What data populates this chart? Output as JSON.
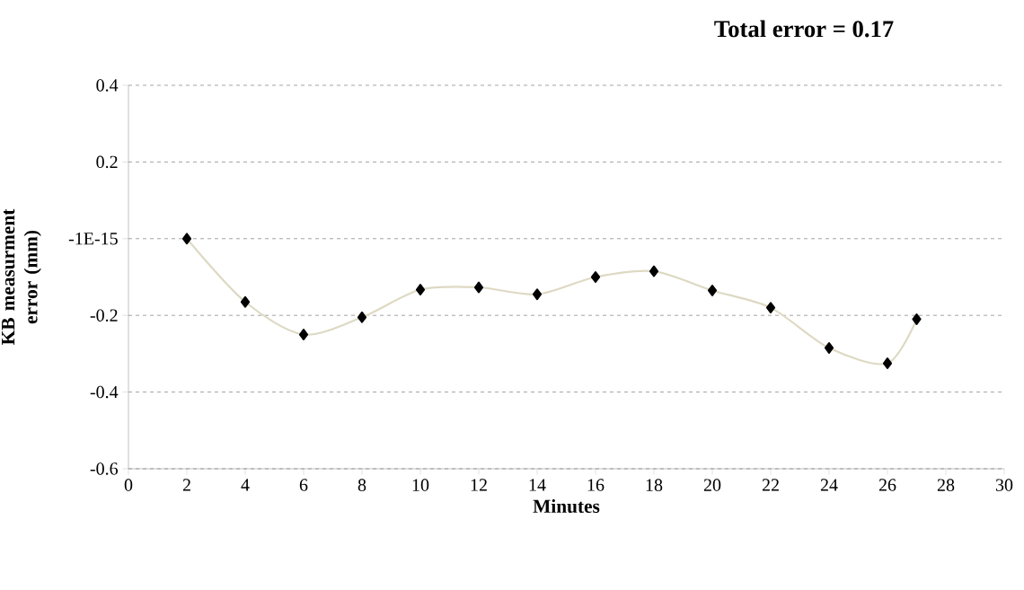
{
  "chart_data": {
    "type": "line",
    "title": "Total error = 0.17",
    "xlabel": "Minutes",
    "ylabel": "KB measurment error (mm)",
    "x": [
      2,
      4,
      6,
      8,
      10,
      12,
      14,
      16,
      18,
      20,
      22,
      24,
      26,
      27
    ],
    "series": [
      {
        "color": "#ddd9c3",
        "values": [
          0.0,
          -0.165,
          -0.25,
          -0.205,
          -0.133,
          -0.127,
          -0.145,
          -0.1,
          -0.085,
          -0.135,
          -0.18,
          -0.285,
          -0.325,
          -0.21
        ]
      }
    ],
    "xlim": [
      0,
      30
    ],
    "xticks": [
      0,
      2,
      4,
      6,
      8,
      10,
      12,
      14,
      16,
      18,
      20,
      22,
      24,
      26,
      28,
      30
    ],
    "ylim": [
      -0.6,
      0.4
    ],
    "yticks": [
      -0.6,
      -0.4,
      -0.2,
      {
        "value": 0,
        "label": "-1E-15"
      },
      0.2,
      0.4
    ],
    "grid": "y",
    "marker": "diamond",
    "line_style": "solid"
  }
}
